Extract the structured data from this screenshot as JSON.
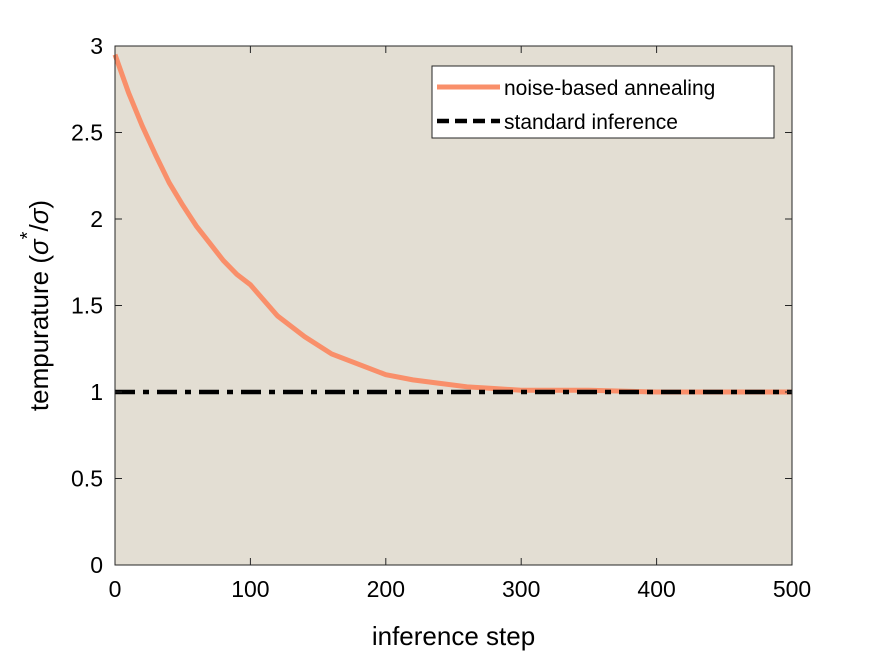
{
  "chart_data": {
    "type": "line",
    "title": "",
    "xlabel": "inference step",
    "ylabel_main": "tempurature (",
    "ylabel_sigma": "σ",
    "ylabel_star": "*",
    "ylabel_rest": "/",
    "ylabel_close": ")",
    "xlim": [
      0,
      500
    ],
    "ylim": [
      0,
      3
    ],
    "x_ticks": [
      0,
      100,
      200,
      300,
      400,
      500
    ],
    "y_ticks": [
      0,
      0.5,
      1,
      1.5,
      2,
      2.5,
      3
    ],
    "x_tick_labels": [
      "0",
      "100",
      "200",
      "300",
      "400",
      "500"
    ],
    "y_tick_labels": [
      "0",
      "0.5",
      "1",
      "1.5",
      "2",
      "2.5",
      "3"
    ],
    "plot_background": "#e3ded3",
    "grid": false,
    "legend_position": "top-right",
    "series": [
      {
        "name": "noise-based annealing",
        "color": "#f98f6a",
        "style": "solid",
        "x": [
          0,
          10,
          20,
          30,
          40,
          50,
          60,
          70,
          80,
          90,
          100,
          120,
          140,
          160,
          180,
          200,
          220,
          240,
          260,
          280,
          300,
          350,
          400,
          450,
          500
        ],
        "y": [
          2.95,
          2.73,
          2.54,
          2.37,
          2.21,
          2.08,
          1.96,
          1.86,
          1.76,
          1.68,
          1.62,
          1.44,
          1.32,
          1.22,
          1.16,
          1.1,
          1.07,
          1.05,
          1.03,
          1.02,
          1.01,
          1.01,
          1.0,
          1.0,
          1.0
        ]
      },
      {
        "name": "standard inference",
        "color": "#000000",
        "style": "dash-dot",
        "x": [
          0,
          500
        ],
        "y": [
          1,
          1
        ]
      }
    ]
  }
}
